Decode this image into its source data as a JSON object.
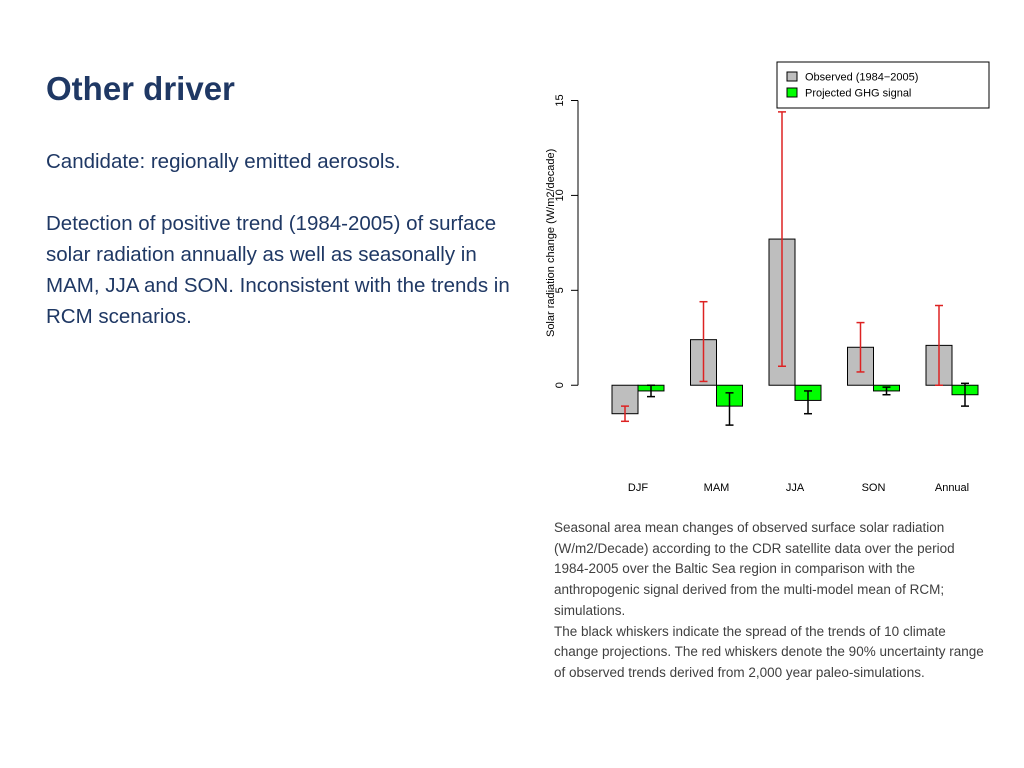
{
  "slide": {
    "title": "Other driver",
    "paragraphs": [
      "Candidate: regionally emitted aerosols.",
      "Detection of positive trend (1984-2005) of surface solar radiation annually as well as seasonally in MAM, JJA and SON. Inconsistent with the trends in RCM scenarios."
    ],
    "caption": [
      "Seasonal area mean changes of observed surface solar radiation (W/m2/Decade) according to the CDR satellite data over the period 1984-2005 over the Baltic Sea region in comparison with the anthropogenic signal derived from the multi-model mean of RCM; simulations.",
      "The black whiskers indicate the spread of the trends of 10 climate change projections. The red whiskers denote the 90% uncertainty range of observed trends derived from 2,000 year paleo-simulations."
    ]
  },
  "colors": {
    "title": "#1f3864",
    "body": "#1f3864",
    "caption": "#404040",
    "observed_bar": "#bebebe",
    "projected_bar": "#00ff00",
    "observed_whisker": "#dd2222",
    "projected_whisker": "#000000"
  },
  "chart_data": {
    "type": "bar",
    "title": "",
    "xlabel": "",
    "ylabel": "Solar radiation change (W/m2/decade)",
    "ylim": [
      -2.2,
      15.5
    ],
    "yticks": [
      0,
      5,
      10,
      15
    ],
    "grid": false,
    "legend_position": "top-right",
    "categories": [
      "DJF",
      "MAM",
      "JJA",
      "SON",
      "Annual"
    ],
    "series": [
      {
        "name": "Observed (1984−2005)",
        "values": [
          -1.5,
          2.4,
          7.7,
          2.0,
          2.1
        ],
        "whisker_low": [
          -1.9,
          0.2,
          1.0,
          0.7,
          0.0
        ],
        "whisker_high": [
          -1.1,
          4.4,
          14.4,
          3.3,
          4.2
        ]
      },
      {
        "name": "Projected GHG signal",
        "values": [
          -0.3,
          -1.1,
          -0.8,
          -0.3,
          -0.5
        ],
        "whisker_low": [
          -0.6,
          -2.1,
          -1.5,
          -0.5,
          -1.1
        ],
        "whisker_high": [
          0.0,
          -0.4,
          -0.3,
          -0.1,
          0.1
        ]
      }
    ]
  }
}
